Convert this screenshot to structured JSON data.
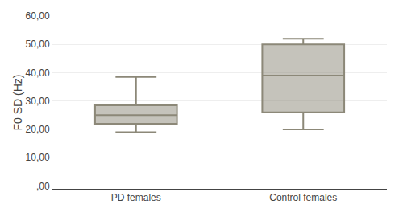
{
  "chart_data": {
    "type": "box",
    "categories": [
      "PD females",
      "Control females"
    ],
    "values": [
      {
        "low": 19.0,
        "q1": 22.0,
        "median": 25.0,
        "q3": 28.5,
        "high": 38.5
      },
      {
        "low": 20.0,
        "q1": 26.0,
        "median": 39.0,
        "q3": 50.0,
        "high": 52.0
      }
    ],
    "color": "#8c8878",
    "ylabel": "F0 SD (Hz)",
    "ylim": [
      -1,
      60
    ],
    "yticks": [
      {
        "value": 0,
        "label": ",00"
      },
      {
        "value": 10,
        "label": "10,00"
      },
      {
        "value": 20,
        "label": "20,00"
      },
      {
        "value": 30,
        "label": "30,00"
      },
      {
        "value": 40,
        "label": "40,00"
      },
      {
        "value": 50,
        "label": "50,00"
      },
      {
        "value": 60,
        "label": "60,00"
      }
    ],
    "grid": true
  }
}
